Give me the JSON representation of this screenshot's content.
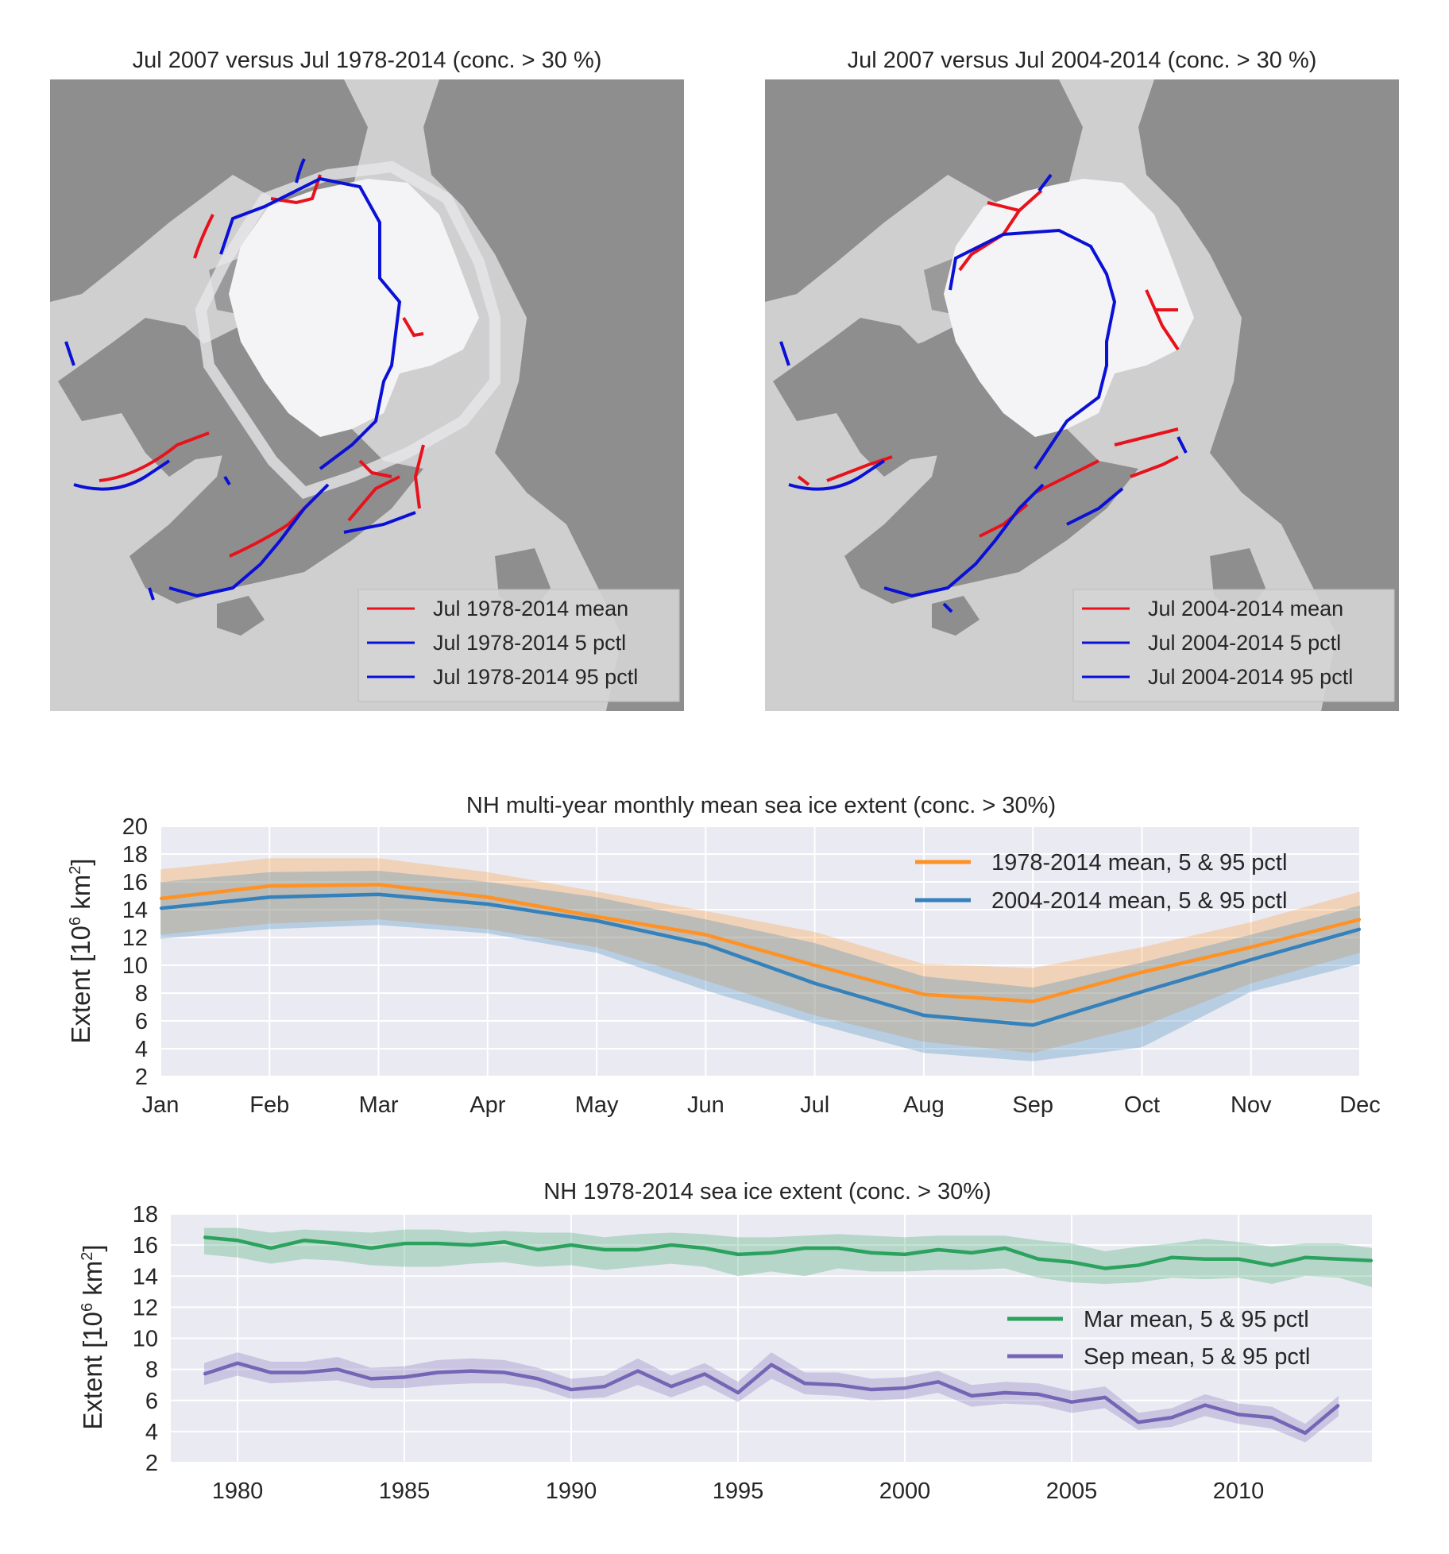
{
  "maps": [
    {
      "title": "Jul 2007 versus Jul 1978-2014 (conc. > 30 %)",
      "legend": [
        {
          "label": "Jul 1978-2014 mean",
          "color": "#e8121c"
        },
        {
          "label": "Jul 1978-2014 5 pctl",
          "color": "#0a10d6"
        },
        {
          "label": "Jul 1978-2014 95 pctl",
          "color": "#0a10d6"
        }
      ]
    },
    {
      "title": "Jul 2007 versus Jul 2004-2014 (conc. > 30 %)",
      "legend": [
        {
          "label": "Jul 2004-2014 mean",
          "color": "#e8121c"
        },
        {
          "label": "Jul 2004-2014 5 pctl",
          "color": "#0a10d6"
        },
        {
          "label": "Jul 2004-2014 95 pctl",
          "color": "#0a10d6"
        }
      ]
    }
  ],
  "chart_data": [
    {
      "type": "line",
      "title": "NH multi-year monthly mean sea ice extent (conc. > 30%)",
      "ylabel": "Extent [10^6 km^2]",
      "ylabel_parts": {
        "pre": "Extent [10",
        "exp1": "6",
        "mid": " km",
        "exp2": "2",
        "post": "]"
      },
      "x": [
        "Jan",
        "Feb",
        "Mar",
        "Apr",
        "May",
        "Jun",
        "Jul",
        "Aug",
        "Sep",
        "Oct",
        "Nov",
        "Dec"
      ],
      "ylim": [
        2,
        20
      ],
      "yticks": [
        2,
        4,
        6,
        8,
        10,
        12,
        14,
        16,
        18,
        20
      ],
      "grid": true,
      "legend_position": "top-right",
      "series": [
        {
          "name": "1978-2014 mean, 5 & 95 pctl",
          "color": "#ff9224",
          "mean": [
            14.8,
            15.7,
            15.8,
            14.9,
            13.5,
            12.2,
            10.0,
            7.9,
            7.4,
            9.5,
            11.3,
            13.3
          ],
          "p5": [
            12.2,
            13.0,
            13.3,
            12.6,
            11.3,
            8.9,
            6.4,
            4.5,
            3.7,
            5.6,
            8.7,
            10.9
          ],
          "p95": [
            16.9,
            17.7,
            17.7,
            16.7,
            15.3,
            13.9,
            12.4,
            10.1,
            9.8,
            11.3,
            13.1,
            15.3
          ]
        },
        {
          "name": "2004-2014 mean, 5 & 95 pctl",
          "color": "#3481bb",
          "mean": [
            14.1,
            14.9,
            15.1,
            14.4,
            13.2,
            11.5,
            8.7,
            6.4,
            5.7,
            8.1,
            10.4,
            12.6
          ],
          "p5": [
            11.9,
            12.6,
            12.9,
            12.3,
            10.9,
            8.2,
            5.8,
            3.7,
            3.1,
            4.1,
            8.1,
            10.1
          ],
          "p95": [
            16.0,
            16.7,
            16.8,
            16.0,
            14.9,
            13.3,
            11.6,
            9.2,
            8.4,
            10.2,
            12.2,
            14.3
          ]
        }
      ]
    },
    {
      "type": "line",
      "title": "NH 1978-2014 sea ice extent (conc. > 30%)",
      "ylabel": "Extent [10^6 km^2]",
      "ylabel_parts": {
        "pre": "Extent [10",
        "exp1": "6",
        "mid": " km",
        "exp2": "2",
        "post": "]"
      },
      "xlim": [
        1978,
        2014
      ],
      "xticks": [
        1980,
        1985,
        1990,
        1995,
        2000,
        2005,
        2010
      ],
      "ylim": [
        2,
        18
      ],
      "yticks": [
        2,
        4,
        6,
        8,
        10,
        12,
        14,
        16,
        18
      ],
      "grid": true,
      "legend_position": "center-right",
      "series": [
        {
          "name": "Mar mean, 5 & 95 pctl",
          "color": "#2ca25f",
          "x": [
            1979,
            1980,
            1981,
            1982,
            1983,
            1984,
            1985,
            1986,
            1987,
            1988,
            1989,
            1990,
            1991,
            1992,
            1993,
            1994,
            1995,
            1996,
            1997,
            1998,
            1999,
            2000,
            2001,
            2002,
            2003,
            2004,
            2005,
            2006,
            2007,
            2008,
            2009,
            2010,
            2011,
            2012,
            2013,
            2014
          ],
          "mean": [
            16.5,
            16.3,
            15.8,
            16.3,
            16.1,
            15.8,
            16.1,
            16.1,
            16.0,
            16.2,
            15.7,
            16.0,
            15.7,
            15.7,
            16.0,
            15.8,
            15.4,
            15.5,
            15.8,
            15.8,
            15.5,
            15.4,
            15.7,
            15.5,
            15.8,
            15.1,
            14.9,
            14.5,
            14.7,
            15.2,
            15.1,
            15.1,
            14.7,
            15.2,
            15.1,
            15.0
          ],
          "p5": [
            15.4,
            15.2,
            14.8,
            15.1,
            15.0,
            14.7,
            14.6,
            14.6,
            14.8,
            14.9,
            14.6,
            14.7,
            14.4,
            14.6,
            14.8,
            14.6,
            14.0,
            14.3,
            14.0,
            14.5,
            14.3,
            14.3,
            14.4,
            14.4,
            14.5,
            13.9,
            13.6,
            13.5,
            13.6,
            13.9,
            13.8,
            13.9,
            13.5,
            14.0,
            13.9,
            13.3
          ],
          "p95": [
            17.1,
            17.1,
            16.8,
            17.0,
            16.9,
            16.8,
            17.0,
            17.0,
            16.8,
            16.9,
            16.8,
            16.8,
            16.5,
            16.7,
            16.8,
            16.7,
            16.5,
            16.5,
            16.6,
            16.7,
            16.6,
            16.5,
            16.6,
            16.6,
            16.6,
            16.3,
            16.1,
            15.6,
            15.9,
            16.1,
            16.4,
            16.2,
            15.9,
            16.1,
            16.1,
            15.8
          ]
        },
        {
          "name": "Sep mean, 5 & 95 pctl",
          "color": "#7566b5",
          "x": [
            1979,
            1980,
            1981,
            1982,
            1983,
            1984,
            1985,
            1986,
            1987,
            1988,
            1989,
            1990,
            1991,
            1992,
            1993,
            1994,
            1995,
            1996,
            1997,
            1998,
            1999,
            2000,
            2001,
            2002,
            2003,
            2004,
            2005,
            2006,
            2007,
            2008,
            2009,
            2010,
            2011,
            2012,
            2013
          ],
          "mean": [
            7.7,
            8.4,
            7.8,
            7.8,
            8.0,
            7.4,
            7.5,
            7.8,
            7.9,
            7.8,
            7.4,
            6.7,
            6.9,
            7.9,
            6.9,
            7.7,
            6.5,
            8.3,
            7.1,
            7.0,
            6.7,
            6.8,
            7.2,
            6.3,
            6.5,
            6.4,
            5.9,
            6.2,
            4.6,
            4.9,
            5.7,
            5.1,
            4.9,
            3.9,
            5.7
          ],
          "p5": [
            7.0,
            7.6,
            7.1,
            7.2,
            7.3,
            6.8,
            6.8,
            7.0,
            7.1,
            7.1,
            6.8,
            6.1,
            6.2,
            7.0,
            6.2,
            7.0,
            5.9,
            7.4,
            6.4,
            6.3,
            6.0,
            6.1,
            6.5,
            5.6,
            5.8,
            5.7,
            5.2,
            5.5,
            4.1,
            4.3,
            5.0,
            4.5,
            4.2,
            3.3,
            5.0
          ],
          "p95": [
            8.4,
            9.1,
            8.5,
            8.5,
            8.8,
            8.1,
            8.2,
            8.6,
            8.7,
            8.6,
            8.1,
            7.4,
            7.6,
            8.7,
            7.6,
            8.4,
            7.2,
            9.1,
            7.8,
            7.8,
            7.4,
            7.5,
            7.9,
            7.0,
            7.2,
            7.1,
            6.6,
            6.9,
            5.2,
            5.5,
            6.4,
            5.8,
            5.6,
            4.5,
            6.3
          ]
        }
      ]
    }
  ]
}
